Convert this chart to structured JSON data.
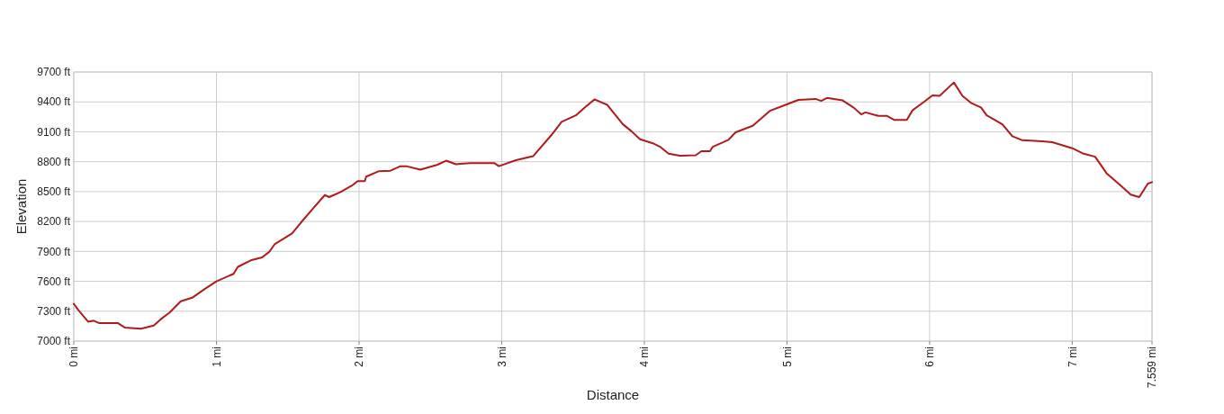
{
  "chart_data": {
    "type": "line",
    "xlabel": "Distance",
    "ylabel": "Elevation",
    "xlim": [
      0,
      7.559
    ],
    "ylim": [
      7000,
      9700
    ],
    "xticks": [
      {
        "value": 0,
        "label": "0 mi"
      },
      {
        "value": 1,
        "label": "1 mi"
      },
      {
        "value": 2,
        "label": "2 mi"
      },
      {
        "value": 3,
        "label": "3 mi"
      },
      {
        "value": 4,
        "label": "4 mi"
      },
      {
        "value": 5,
        "label": "5 mi"
      },
      {
        "value": 6,
        "label": "6 mi"
      },
      {
        "value": 7,
        "label": "7 mi"
      },
      {
        "value": 7.559,
        "label": "7.559 mi"
      }
    ],
    "yticks": [
      {
        "value": 7000,
        "label": "7000 ft"
      },
      {
        "value": 7300,
        "label": "7300 ft"
      },
      {
        "value": 7600,
        "label": "7600 ft"
      },
      {
        "value": 7900,
        "label": "7900 ft"
      },
      {
        "value": 8200,
        "label": "8200 ft"
      },
      {
        "value": 8500,
        "label": "8500 ft"
      },
      {
        "value": 8800,
        "label": "8800 ft"
      },
      {
        "value": 9100,
        "label": "9100 ft"
      },
      {
        "value": 9400,
        "label": "9400 ft"
      },
      {
        "value": 9700,
        "label": "9700 ft"
      }
    ],
    "grid": true,
    "marker": "none",
    "line_style": "solid",
    "series": [
      {
        "color": "#b01a1a",
        "x": [
          0,
          0.03,
          0.1,
          0.14,
          0.18,
          0.31,
          0.36,
          0.47,
          0.56,
          0.61,
          0.67,
          0.75,
          0.83,
          0.92,
          1.0,
          1.12,
          1.15,
          1.24,
          1.32,
          1.37,
          1.41,
          1.53,
          1.59,
          1.68,
          1.76,
          1.79,
          1.87,
          1.95,
          1.99,
          2.04,
          2.05,
          2.14,
          2.22,
          2.29,
          2.33,
          2.43,
          2.55,
          2.61,
          2.68,
          2.78,
          2.95,
          2.98,
          3.1,
          3.22,
          3.35,
          3.42,
          3.52,
          3.58,
          3.65,
          3.74,
          3.85,
          3.91,
          3.97,
          4.06,
          4.11,
          4.17,
          4.25,
          4.36,
          4.4,
          4.46,
          4.48,
          4.59,
          4.64,
          4.76,
          4.88,
          4.99,
          5.08,
          5.2,
          5.24,
          5.28,
          5.39,
          5.47,
          5.52,
          5.55,
          5.64,
          5.7,
          5.75,
          5.84,
          5.88,
          5.96,
          6.02,
          6.07,
          6.17,
          6.23,
          6.29,
          6.36,
          6.4,
          6.51,
          6.58,
          6.65,
          6.79,
          6.86,
          7.0,
          7.08,
          7.16,
          7.24,
          7.34,
          7.41,
          7.47,
          7.53,
          7.559
        ],
        "values": [
          7375,
          7315,
          7195,
          7205,
          7180,
          7180,
          7135,
          7125,
          7155,
          7220,
          7285,
          7400,
          7435,
          7525,
          7600,
          7675,
          7745,
          7810,
          7840,
          7895,
          7975,
          8080,
          8185,
          8335,
          8465,
          8445,
          8495,
          8560,
          8605,
          8605,
          8650,
          8705,
          8710,
          8755,
          8755,
          8720,
          8770,
          8810,
          8775,
          8785,
          8785,
          8755,
          8815,
          8855,
          9070,
          9200,
          9265,
          9340,
          9425,
          9370,
          9175,
          9105,
          9025,
          8985,
          8950,
          8880,
          8860,
          8865,
          8905,
          8905,
          8950,
          9020,
          9095,
          9160,
          9310,
          9370,
          9420,
          9430,
          9410,
          9440,
          9415,
          9340,
          9275,
          9295,
          9260,
          9260,
          9220,
          9220,
          9315,
          9400,
          9465,
          9460,
          9595,
          9460,
          9390,
          9345,
          9265,
          9175,
          9055,
          9015,
          9005,
          8995,
          8935,
          8880,
          8850,
          8685,
          8560,
          8470,
          8445,
          8580,
          8595
        ]
      }
    ]
  }
}
